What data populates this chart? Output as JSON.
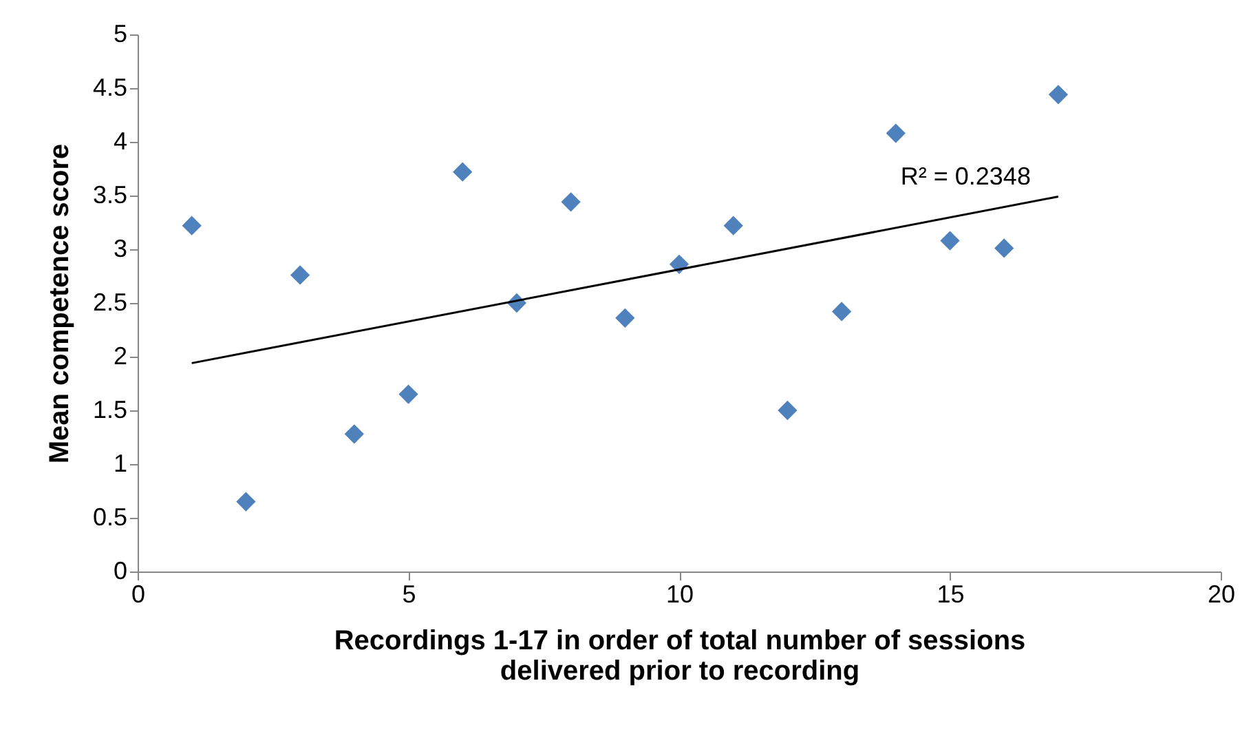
{
  "chart_data": {
    "type": "scatter",
    "xlabel": "Recordings 1-17 in order of total number of sessions delivered prior to recording",
    "ylabel": "Mean competence score",
    "x": [
      1,
      2,
      3,
      4,
      5,
      6,
      7,
      8,
      9,
      10,
      11,
      12,
      13,
      14,
      15,
      16,
      17
    ],
    "series": [
      {
        "color": "#4f81bd",
        "values": [
          3.22,
          0.65,
          2.76,
          1.28,
          1.65,
          3.72,
          2.5,
          3.44,
          2.36,
          2.86,
          3.22,
          1.5,
          2.42,
          4.08,
          3.08,
          3.01,
          4.44
        ]
      },
      {
        "type": "line",
        "color": "#000000",
        "marker": "none",
        "x": [
          1,
          17
        ],
        "values": [
          1.94,
          3.49
        ]
      }
    ],
    "annotations": [
      "R² = 0.2348"
    ],
    "xlim": [
      0,
      20
    ],
    "xticks": [
      0,
      5,
      10,
      15,
      20
    ],
    "ylim": [
      0,
      5
    ],
    "yticks": [
      0,
      0.5,
      1,
      1.5,
      2,
      2.5,
      3,
      3.5,
      4,
      4.5,
      5
    ],
    "grid": false,
    "marker": "diamond",
    "line_style": "solid"
  }
}
